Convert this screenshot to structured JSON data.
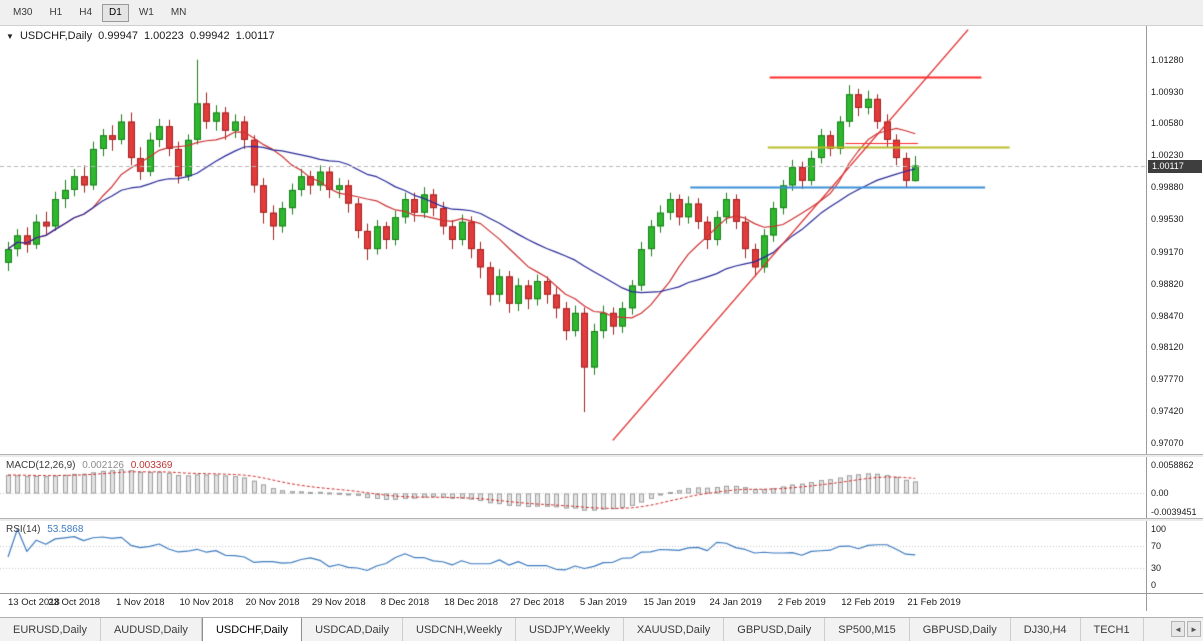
{
  "toolbar": {
    "timeframes": [
      {
        "label": "M30",
        "active": false
      },
      {
        "label": "H1",
        "active": false
      },
      {
        "label": "H4",
        "active": false
      },
      {
        "label": "D1",
        "active": true
      },
      {
        "label": "W1",
        "active": false
      },
      {
        "label": "MN",
        "active": false
      }
    ]
  },
  "main_chart": {
    "collapse_icon": "▼",
    "symbol": "USDCHF,Daily",
    "open": "0.99947",
    "high": "1.00223",
    "low": "0.99942",
    "close": "1.00117",
    "current_price": "1.00117",
    "price_axis_labels": [
      "1.01280",
      "1.00930",
      "1.00580",
      "1.00230",
      "0.99880",
      "0.99530",
      "0.99170",
      "0.98820",
      "0.98470",
      "0.98120",
      "0.97770",
      "0.97420",
      "0.97070"
    ],
    "price_min": 0.9695,
    "price_max": 1.0165,
    "colors": {
      "up_body": "#2eb82e",
      "up_border": "#1b7f1b",
      "down_body": "#e23b3b",
      "down_border": "#a32222",
      "ma_fast": "#cc3333",
      "ma_slow": "#2a2a99",
      "trend": "#e03030",
      "hline_red": "#ff2a2a",
      "hline_yellow": "#b9bd2a",
      "hline_blue": "#3c8fd6",
      "bid_line": "#b8b8b8",
      "badge_bg": "#3e3e3e",
      "badge_text": "#ffffff"
    }
  },
  "chart_data": {
    "type": "candlestick",
    "symbol": "USDCHF",
    "timeframe": "Daily",
    "x_label_step": 7,
    "x_labels": [
      "13 Oct 2018",
      "23 Oct 2018",
      "1 Nov 2018",
      "10 Nov 2018",
      "20 Nov 2018",
      "29 Nov 2018",
      "8 Dec 2018",
      "18 Dec 2018",
      "27 Dec 2018",
      "5 Jan 2019",
      "15 Jan 2019",
      "24 Jan 2019",
      "2 Feb 2019",
      "12 Feb 2019",
      "21 Feb 2019"
    ],
    "candles": [
      [
        0.9905,
        0.9928,
        0.9896,
        0.992
      ],
      [
        0.992,
        0.9942,
        0.9912,
        0.9935
      ],
      [
        0.9935,
        0.9944,
        0.9916,
        0.9925
      ],
      [
        0.9925,
        0.9958,
        0.992,
        0.995
      ],
      [
        0.995,
        0.9961,
        0.9936,
        0.9945
      ],
      [
        0.9945,
        0.9983,
        0.994,
        0.9975
      ],
      [
        0.9975,
        0.9996,
        0.9965,
        0.9985
      ],
      [
        0.9985,
        1.0008,
        0.9978,
        1.0
      ],
      [
        1.0,
        1.0012,
        0.9982,
        0.999
      ],
      [
        0.999,
        1.0038,
        0.9985,
        1.003
      ],
      [
        1.003,
        1.0052,
        1.0022,
        1.0045
      ],
      [
        1.0045,
        1.0056,
        1.0028,
        1.004
      ],
      [
        1.004,
        1.0068,
        1.0035,
        1.006
      ],
      [
        1.006,
        1.007,
        1.0012,
        1.002
      ],
      [
        1.002,
        1.0032,
        0.9996,
        1.0005
      ],
      [
        1.0005,
        1.0048,
        1.0,
        1.004
      ],
      [
        1.004,
        1.0063,
        1.0032,
        1.0055
      ],
      [
        1.0055,
        1.0062,
        1.0022,
        1.003
      ],
      [
        1.003,
        1.0038,
        0.9992,
        1.0
      ],
      [
        1.0,
        1.0046,
        0.9995,
        1.004
      ],
      [
        1.004,
        1.0128,
        1.0035,
        1.008
      ],
      [
        1.008,
        1.0092,
        1.0052,
        1.006
      ],
      [
        1.006,
        1.0078,
        1.005,
        1.007
      ],
      [
        1.007,
        1.0076,
        1.004,
        1.005
      ],
      [
        1.005,
        1.0068,
        1.0042,
        1.006
      ],
      [
        1.006,
        1.0066,
        1.003,
        1.004
      ],
      [
        1.004,
        1.0045,
        0.9982,
        0.999
      ],
      [
        0.999,
        0.9998,
        0.9948,
        0.996
      ],
      [
        0.996,
        0.9968,
        0.993,
        0.9945
      ],
      [
        0.9945,
        0.9972,
        0.9938,
        0.9965
      ],
      [
        0.9965,
        0.9992,
        0.9958,
        0.9985
      ],
      [
        0.9985,
        1.0008,
        0.9978,
        1.0
      ],
      [
        1.0,
        1.0006,
        0.998,
        0.999
      ],
      [
        0.999,
        1.0012,
        0.9984,
        1.0005
      ],
      [
        1.0005,
        1.001,
        0.9976,
        0.9985
      ],
      [
        0.9985,
        0.9998,
        0.9976,
        0.999
      ],
      [
        0.999,
        0.9996,
        0.996,
        0.997
      ],
      [
        0.997,
        0.9976,
        0.9932,
        0.994
      ],
      [
        0.994,
        0.9948,
        0.9908,
        0.992
      ],
      [
        0.992,
        0.9952,
        0.9914,
        0.9945
      ],
      [
        0.9945,
        0.995,
        0.992,
        0.993
      ],
      [
        0.993,
        0.9962,
        0.9924,
        0.9955
      ],
      [
        0.9955,
        0.9982,
        0.9948,
        0.9975
      ],
      [
        0.9975,
        0.9982,
        0.995,
        0.996
      ],
      [
        0.996,
        0.9988,
        0.9954,
        0.998
      ],
      [
        0.998,
        0.9986,
        0.9956,
        0.9965
      ],
      [
        0.9965,
        0.9972,
        0.9936,
        0.9945
      ],
      [
        0.9945,
        0.9952,
        0.992,
        0.993
      ],
      [
        0.993,
        0.9958,
        0.9924,
        0.995
      ],
      [
        0.995,
        0.9956,
        0.991,
        0.992
      ],
      [
        0.992,
        0.9928,
        0.9888,
        0.99
      ],
      [
        0.99,
        0.9906,
        0.9858,
        0.987
      ],
      [
        0.987,
        0.9898,
        0.9862,
        0.989
      ],
      [
        0.989,
        0.9896,
        0.985,
        0.986
      ],
      [
        0.986,
        0.9888,
        0.9852,
        0.988
      ],
      [
        0.988,
        0.9886,
        0.9854,
        0.9865
      ],
      [
        0.9865,
        0.9892,
        0.9858,
        0.9885
      ],
      [
        0.9885,
        0.989,
        0.986,
        0.987
      ],
      [
        0.987,
        0.9878,
        0.9844,
        0.9855
      ],
      [
        0.9855,
        0.9862,
        0.982,
        0.983
      ],
      [
        0.983,
        0.9858,
        0.9824,
        0.985
      ],
      [
        0.985,
        0.9856,
        0.9741,
        0.979
      ],
      [
        0.979,
        0.9838,
        0.9782,
        0.983
      ],
      [
        0.983,
        0.9858,
        0.9822,
        0.985
      ],
      [
        0.985,
        0.9856,
        0.9826,
        0.9835
      ],
      [
        0.9835,
        0.9862,
        0.9828,
        0.9855
      ],
      [
        0.9855,
        0.9886,
        0.9848,
        0.988
      ],
      [
        0.988,
        0.9928,
        0.9874,
        0.992
      ],
      [
        0.992,
        0.9952,
        0.9912,
        0.9945
      ],
      [
        0.9945,
        0.9968,
        0.9938,
        0.996
      ],
      [
        0.996,
        0.9982,
        0.9952,
        0.9975
      ],
      [
        0.9975,
        0.998,
        0.9946,
        0.9955
      ],
      [
        0.9955,
        0.9978,
        0.9948,
        0.997
      ],
      [
        0.997,
        0.9976,
        0.9942,
        0.995
      ],
      [
        0.995,
        0.9956,
        0.992,
        0.993
      ],
      [
        0.993,
        0.9962,
        0.9924,
        0.9955
      ],
      [
        0.9955,
        0.9982,
        0.9948,
        0.9975
      ],
      [
        0.9975,
        0.998,
        0.9942,
        0.995
      ],
      [
        0.995,
        0.9956,
        0.991,
        0.992
      ],
      [
        0.992,
        0.9926,
        0.989,
        0.99
      ],
      [
        0.99,
        0.9942,
        0.9894,
        0.9935
      ],
      [
        0.9935,
        0.9972,
        0.9928,
        0.9965
      ],
      [
        0.9965,
        0.9996,
        0.9958,
        0.999
      ],
      [
        0.999,
        1.0018,
        0.9984,
        1.001
      ],
      [
        1.001,
        1.0016,
        0.9986,
        0.9995
      ],
      [
        0.9995,
        1.0028,
        0.999,
        1.002
      ],
      [
        1.002,
        1.0052,
        1.0014,
        1.0045
      ],
      [
        1.0045,
        1.005,
        1.0022,
        1.003
      ],
      [
        1.003,
        1.0066,
        1.0024,
        1.006
      ],
      [
        1.006,
        1.01,
        1.0054,
        1.009
      ],
      [
        1.009,
        1.0096,
        1.0066,
        1.0075
      ],
      [
        1.0075,
        1.0094,
        1.0068,
        1.0085
      ],
      [
        1.0085,
        1.009,
        1.0052,
        1.006
      ],
      [
        1.006,
        1.0068,
        1.0032,
        1.004
      ],
      [
        1.004,
        1.0046,
        1.0012,
        1.002
      ],
      [
        1.002,
        1.0026,
        0.9988,
        0.9995
      ],
      [
        0.99947,
        1.00223,
        0.99942,
        1.00117
      ]
    ],
    "moving_averages": [
      {
        "period": 10,
        "color_key": "ma_fast"
      },
      {
        "period": 21,
        "color_key": "ma_slow"
      }
    ],
    "trendline": {
      "x1_index": 64,
      "price1": 0.971,
      "x2_index": 101.6,
      "price2": 1.0161
    },
    "hlines": [
      {
        "price": 1.0109,
        "x1_index": 80.6,
        "x2_index": 103.0,
        "color_key": "hline_red",
        "width": 2
      },
      {
        "price": 1.0032,
        "x1_index": 80.4,
        "x2_index": 106.0,
        "color_key": "hline_yellow",
        "width": 2
      },
      {
        "price": 0.9988,
        "x1_index": 72.2,
        "x2_index": 103.4,
        "color_key": "hline_blue",
        "width": 2
      },
      {
        "price": 1.0037,
        "x1_index": 88.6,
        "x2_index": 96.3,
        "color_key": "hline_red",
        "width": 1
      }
    ]
  },
  "macd_panel": {
    "label": "MACD(12,26,9)",
    "value_main": "0.002126",
    "value_signal": "0.003369",
    "axis_labels": [
      {
        "text": "0.0058862",
        "value": 0.0058862
      },
      {
        "text": "0.00",
        "value": 0
      },
      {
        "text": "-0.0039451",
        "value": -0.0039451
      }
    ],
    "range_min": -0.0052,
    "range_max": 0.0076,
    "colors": {
      "hist_fill": "#e3e3e3",
      "hist_border": "#9f9f9f",
      "signal": "#d03030",
      "zero": "#c8c8c8"
    }
  },
  "rsi_panel": {
    "label": "RSI(14)",
    "value": "53.5868",
    "axis_labels": [
      {
        "text": "100",
        "value": 100
      },
      {
        "text": "70",
        "value": 70
      },
      {
        "text": "30",
        "value": 30
      },
      {
        "text": "0",
        "value": 0
      }
    ],
    "levels": [
      70,
      30
    ],
    "range_min": 0,
    "range_max": 100,
    "color": "#3e7bbf",
    "level_color": "#c8c8c8"
  },
  "tabs": {
    "items": [
      {
        "label": "EURUSD,Daily",
        "active": false
      },
      {
        "label": "AUDUSD,Daily",
        "active": false
      },
      {
        "label": "USDCHF,Daily",
        "active": true
      },
      {
        "label": "USDCAD,Daily",
        "active": false
      },
      {
        "label": "USDCNH,Weekly",
        "active": false
      },
      {
        "label": "USDJPY,Weekly",
        "active": false
      },
      {
        "label": "XAUUSD,Daily",
        "active": false
      },
      {
        "label": "GBPUSD,Daily",
        "active": false
      },
      {
        "label": "SP500,M15",
        "active": false
      },
      {
        "label": "GBPUSD,Daily",
        "active": false
      },
      {
        "label": "DJ30,H4",
        "active": false
      },
      {
        "label": "TECH1",
        "active": false
      }
    ],
    "scroll_left": "◄",
    "scroll_right": "►"
  }
}
